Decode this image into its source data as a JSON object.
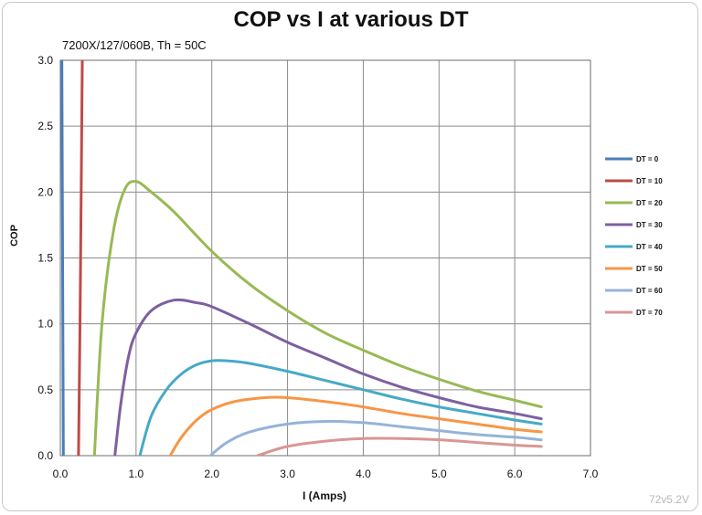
{
  "chart_data": {
    "type": "line",
    "title": "COP vs I at various DT",
    "subtitle": "7200X/127/060B, Th = 50C",
    "xlabel": "I (Amps)",
    "ylabel": "COP",
    "xlim": [
      0,
      7
    ],
    "ylim": [
      0,
      3
    ],
    "x_ticks": [
      "0.0",
      "1.0",
      "2.0",
      "3.0",
      "4.0",
      "5.0",
      "6.0",
      "7.0"
    ],
    "y_ticks": [
      "0.0",
      "0.5",
      "1.0",
      "1.5",
      "2.0",
      "2.5",
      "3.0"
    ],
    "grid": true,
    "legend_position": "right",
    "series": [
      {
        "name": "DT = 0",
        "color": "#4a7ebb",
        "points": [
          [
            0.02,
            3.0
          ],
          [
            0.04,
            0.0
          ]
        ]
      },
      {
        "name": "DT = 10",
        "color": "#be4b48",
        "points": [
          [
            0.24,
            0.0
          ],
          [
            0.26,
            1.0
          ],
          [
            0.29,
            3.0
          ]
        ]
      },
      {
        "name": "DT = 20",
        "color": "#98b954",
        "points": [
          [
            0.45,
            0.0
          ],
          [
            0.55,
            1.0
          ],
          [
            0.7,
            1.7
          ],
          [
            0.85,
            2.02
          ],
          [
            1.0,
            2.08
          ],
          [
            1.2,
            2.0
          ],
          [
            1.5,
            1.85
          ],
          [
            2.0,
            1.55
          ],
          [
            2.5,
            1.3
          ],
          [
            3.0,
            1.1
          ],
          [
            3.5,
            0.93
          ],
          [
            4.0,
            0.8
          ],
          [
            4.5,
            0.68
          ],
          [
            5.0,
            0.58
          ],
          [
            5.5,
            0.49
          ],
          [
            6.0,
            0.42
          ],
          [
            6.35,
            0.37
          ]
        ]
      },
      {
        "name": "DT = 30",
        "color": "#7d60a0",
        "points": [
          [
            0.72,
            0.0
          ],
          [
            0.8,
            0.4
          ],
          [
            0.9,
            0.75
          ],
          [
            1.0,
            0.93
          ],
          [
            1.2,
            1.1
          ],
          [
            1.5,
            1.18
          ],
          [
            1.8,
            1.16
          ],
          [
            2.0,
            1.13
          ],
          [
            2.5,
            1.0
          ],
          [
            3.0,
            0.86
          ],
          [
            3.5,
            0.74
          ],
          [
            4.0,
            0.62
          ],
          [
            4.5,
            0.52
          ],
          [
            5.0,
            0.44
          ],
          [
            5.5,
            0.37
          ],
          [
            6.0,
            0.32
          ],
          [
            6.35,
            0.28
          ]
        ]
      },
      {
        "name": "DT = 40",
        "color": "#46aac5",
        "points": [
          [
            1.05,
            0.0
          ],
          [
            1.2,
            0.3
          ],
          [
            1.4,
            0.5
          ],
          [
            1.6,
            0.62
          ],
          [
            1.8,
            0.69
          ],
          [
            2.0,
            0.72
          ],
          [
            2.2,
            0.72
          ],
          [
            2.5,
            0.7
          ],
          [
            3.0,
            0.64
          ],
          [
            3.5,
            0.57
          ],
          [
            4.0,
            0.5
          ],
          [
            4.5,
            0.43
          ],
          [
            5.0,
            0.37
          ],
          [
            5.5,
            0.32
          ],
          [
            6.0,
            0.27
          ],
          [
            6.35,
            0.24
          ]
        ]
      },
      {
        "name": "DT = 50",
        "color": "#f79646",
        "points": [
          [
            1.45,
            0.0
          ],
          [
            1.6,
            0.14
          ],
          [
            1.8,
            0.27
          ],
          [
            2.0,
            0.35
          ],
          [
            2.3,
            0.41
          ],
          [
            2.7,
            0.44
          ],
          [
            3.0,
            0.44
          ],
          [
            3.5,
            0.41
          ],
          [
            4.0,
            0.37
          ],
          [
            4.5,
            0.32
          ],
          [
            5.0,
            0.28
          ],
          [
            5.5,
            0.24
          ],
          [
            6.0,
            0.2
          ],
          [
            6.35,
            0.18
          ]
        ]
      },
      {
        "name": "DT = 60",
        "color": "#95b3d7",
        "points": [
          [
            1.98,
            0.0
          ],
          [
            2.2,
            0.1
          ],
          [
            2.5,
            0.18
          ],
          [
            3.0,
            0.24
          ],
          [
            3.5,
            0.26
          ],
          [
            4.0,
            0.25
          ],
          [
            4.5,
            0.22
          ],
          [
            5.0,
            0.19
          ],
          [
            5.5,
            0.16
          ],
          [
            6.0,
            0.14
          ],
          [
            6.35,
            0.12
          ]
        ]
      },
      {
        "name": "DT = 70",
        "color": "#d99694",
        "points": [
          [
            2.6,
            0.0
          ],
          [
            3.0,
            0.07
          ],
          [
            3.5,
            0.11
          ],
          [
            4.0,
            0.13
          ],
          [
            4.5,
            0.13
          ],
          [
            5.0,
            0.12
          ],
          [
            5.5,
            0.1
          ],
          [
            6.0,
            0.08
          ],
          [
            6.35,
            0.07
          ]
        ]
      }
    ]
  },
  "watermark": "72v5.2V"
}
